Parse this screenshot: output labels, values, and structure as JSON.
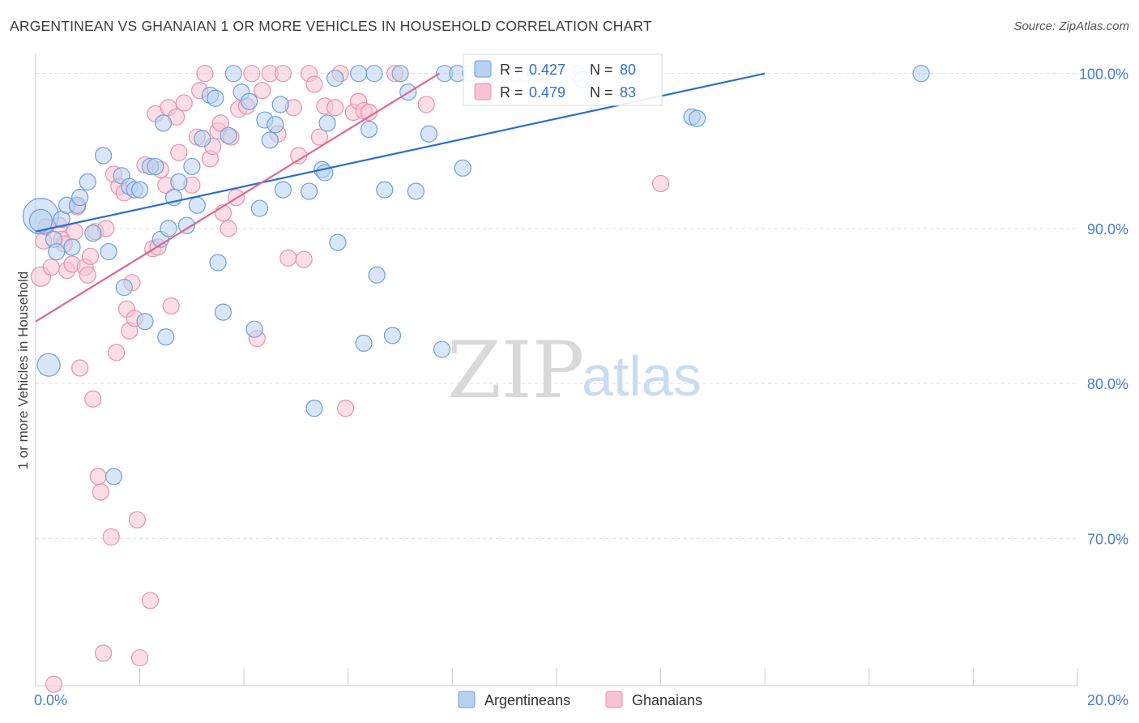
{
  "title": "ARGENTINEAN VS GHANAIAN 1 OR MORE VEHICLES IN HOUSEHOLD CORRELATION CHART",
  "source": "Source: ZipAtlas.com",
  "watermark": {
    "zip": "ZIP",
    "atlas": "atlas"
  },
  "colors": {
    "blue_fill": "#b8d1f0",
    "blue_stroke": "#6f9fd8",
    "blue_line": "#2a6fce",
    "pink_fill": "#f7c2d2",
    "pink_stroke": "#e891ad",
    "pink_line": "#e0658f",
    "tick": "#4a7cc7",
    "grid": "#dddddd"
  },
  "stats_box": {
    "rows": [
      {
        "r_label": "R = ",
        "r_value": "0.427",
        "n_label": "N = ",
        "n_value": "80"
      },
      {
        "r_label": "R = ",
        "r_value": "0.479",
        "n_label": "N = ",
        "n_value": "83"
      }
    ]
  },
  "chart_data": {
    "type": "scatter",
    "title": "ARGENTINEAN VS GHANAIAN 1 OR MORE VEHICLES IN HOUSEHOLD CORRELATION CHART",
    "xlabel": "",
    "ylabel": "1 or more Vehicles in Household",
    "xlim": [
      0,
      20
    ],
    "ylim": [
      60.5,
      101.5
    ],
    "x_ticks": [
      {
        "value": 0,
        "label": "0.0%"
      },
      {
        "value": 20,
        "label": "20.0%"
      }
    ],
    "y_ticks": [
      {
        "value": 100,
        "label": "100.0%"
      },
      {
        "value": 90,
        "label": "90.0%"
      },
      {
        "value": 80,
        "label": "80.0%"
      },
      {
        "value": 70,
        "label": "70.0%"
      }
    ],
    "legend": [
      "Argentineans",
      "Ghanaians"
    ],
    "legend_position": "bottom",
    "series": [
      {
        "name": "Argentineans",
        "r": 0.427,
        "n": 80,
        "trend": [
          [
            0,
            89.8
          ],
          [
            14,
            100
          ]
        ],
        "points": [
          [
            0.1,
            90.8,
            22
          ],
          [
            0.1,
            90.5,
            14
          ],
          [
            0.25,
            81.2,
            14
          ],
          [
            0.35,
            89.3,
            10
          ],
          [
            0.4,
            88.5,
            10
          ],
          [
            0.5,
            90.6,
            10
          ],
          [
            0.6,
            91.5,
            10
          ],
          [
            0.7,
            88.8,
            10
          ],
          [
            0.8,
            91.5,
            10
          ],
          [
            0.85,
            92.0,
            10
          ],
          [
            1.0,
            93.0,
            10
          ],
          [
            1.1,
            89.7,
            10
          ],
          [
            1.3,
            94.7,
            10
          ],
          [
            1.4,
            88.5,
            10
          ],
          [
            1.5,
            74.0,
            10
          ],
          [
            1.65,
            93.4,
            10
          ],
          [
            1.7,
            86.2,
            10
          ],
          [
            1.8,
            92.7,
            10
          ],
          [
            1.9,
            92.5,
            10
          ],
          [
            2.0,
            92.5,
            10
          ],
          [
            2.1,
            84.0,
            10
          ],
          [
            2.2,
            94.0,
            10
          ],
          [
            2.3,
            94.0,
            10
          ],
          [
            2.4,
            89.3,
            10
          ],
          [
            2.45,
            96.8,
            10
          ],
          [
            2.5,
            83.0,
            10
          ],
          [
            2.55,
            90.0,
            10
          ],
          [
            2.65,
            92.0,
            10
          ],
          [
            2.75,
            93.0,
            10
          ],
          [
            2.9,
            90.2,
            10
          ],
          [
            3.0,
            94.0,
            10
          ],
          [
            3.1,
            91.5,
            10
          ],
          [
            3.2,
            95.8,
            10
          ],
          [
            3.35,
            98.6,
            10
          ],
          [
            3.45,
            98.4,
            10
          ],
          [
            3.5,
            87.8,
            10
          ],
          [
            3.6,
            84.6,
            10
          ],
          [
            3.7,
            96.0,
            10
          ],
          [
            3.8,
            100.0,
            10
          ],
          [
            3.95,
            98.8,
            10
          ],
          [
            4.1,
            98.2,
            10
          ],
          [
            4.2,
            83.5,
            10
          ],
          [
            4.3,
            91.3,
            10
          ],
          [
            4.4,
            97.0,
            10
          ],
          [
            4.5,
            95.7,
            10
          ],
          [
            4.6,
            96.7,
            10
          ],
          [
            4.7,
            98.0,
            10
          ],
          [
            4.75,
            92.5,
            10
          ],
          [
            5.25,
            92.4,
            10
          ],
          [
            5.35,
            78.4,
            10
          ],
          [
            5.5,
            93.8,
            10
          ],
          [
            5.55,
            93.6,
            10
          ],
          [
            5.6,
            96.8,
            10
          ],
          [
            5.75,
            99.7,
            10
          ],
          [
            5.8,
            89.1,
            10
          ],
          [
            6.2,
            100.0,
            10
          ],
          [
            6.3,
            82.6,
            10
          ],
          [
            6.4,
            96.4,
            10
          ],
          [
            6.5,
            100.0,
            10
          ],
          [
            6.55,
            87.0,
            10
          ],
          [
            6.7,
            92.5,
            10
          ],
          [
            6.85,
            83.1,
            10
          ],
          [
            7.0,
            100.0,
            10
          ],
          [
            7.15,
            98.8,
            10
          ],
          [
            7.3,
            92.4,
            10
          ],
          [
            7.55,
            96.1,
            10
          ],
          [
            7.8,
            82.2,
            10
          ],
          [
            7.85,
            100.0,
            10
          ],
          [
            8.1,
            100.0,
            10
          ],
          [
            8.2,
            93.9,
            10
          ],
          [
            8.35,
            100.0,
            10
          ],
          [
            8.7,
            99.9,
            10
          ],
          [
            9.2,
            100.0,
            10
          ],
          [
            9.4,
            100.0,
            10
          ],
          [
            9.6,
            100.0,
            10
          ],
          [
            10.4,
            100.0,
            10
          ],
          [
            10.5,
            99.6,
            10
          ],
          [
            12.6,
            97.2,
            10
          ],
          [
            12.7,
            97.1,
            10
          ],
          [
            17.0,
            100.0,
            10
          ]
        ]
      },
      {
        "name": "Ghanaians",
        "r": 0.479,
        "n": 83,
        "trend": [
          [
            0,
            84.0
          ],
          [
            7.75,
            100
          ]
        ],
        "points": [
          [
            0.1,
            86.9,
            12
          ],
          [
            0.15,
            89.2,
            10
          ],
          [
            0.2,
            90.1,
            10
          ],
          [
            0.3,
            87.5,
            10
          ],
          [
            0.35,
            60.6,
            10
          ],
          [
            0.45,
            90.2,
            10
          ],
          [
            0.5,
            89.3,
            10
          ],
          [
            0.55,
            89.0,
            10
          ],
          [
            0.6,
            87.3,
            10
          ],
          [
            0.7,
            87.7,
            10
          ],
          [
            0.75,
            89.8,
            10
          ],
          [
            0.8,
            91.4,
            10
          ],
          [
            0.85,
            81.0,
            10
          ],
          [
            0.95,
            87.5,
            10
          ],
          [
            1.0,
            87.0,
            10
          ],
          [
            1.05,
            88.2,
            10
          ],
          [
            1.1,
            79.0,
            10
          ],
          [
            1.15,
            89.8,
            10
          ],
          [
            1.2,
            74.0,
            10
          ],
          [
            1.25,
            73.0,
            10
          ],
          [
            1.3,
            62.6,
            10
          ],
          [
            1.35,
            90.0,
            10
          ],
          [
            1.45,
            70.1,
            10
          ],
          [
            1.5,
            93.5,
            10
          ],
          [
            1.55,
            82.0,
            10
          ],
          [
            1.6,
            92.7,
            10
          ],
          [
            1.7,
            92.3,
            10
          ],
          [
            1.75,
            84.8,
            10
          ],
          [
            1.8,
            83.4,
            10
          ],
          [
            1.85,
            86.5,
            10
          ],
          [
            1.9,
            84.2,
            10
          ],
          [
            1.95,
            71.2,
            10
          ],
          [
            2.0,
            62.3,
            10
          ],
          [
            2.1,
            94.1,
            10
          ],
          [
            2.2,
            66.0,
            10
          ],
          [
            2.25,
            88.7,
            10
          ],
          [
            2.3,
            97.4,
            10
          ],
          [
            2.35,
            88.8,
            10
          ],
          [
            2.4,
            93.8,
            10
          ],
          [
            2.5,
            92.8,
            10
          ],
          [
            2.55,
            97.8,
            10
          ],
          [
            2.6,
            85.0,
            10
          ],
          [
            2.7,
            97.2,
            10
          ],
          [
            2.75,
            94.9,
            10
          ],
          [
            2.85,
            98.1,
            10
          ],
          [
            3.0,
            92.8,
            10
          ],
          [
            3.1,
            95.9,
            10
          ],
          [
            3.15,
            98.9,
            10
          ],
          [
            3.25,
            100.0,
            10
          ],
          [
            3.35,
            94.5,
            10
          ],
          [
            3.4,
            95.3,
            10
          ],
          [
            3.5,
            96.3,
            10
          ],
          [
            3.55,
            96.8,
            10
          ],
          [
            3.6,
            91.0,
            10
          ],
          [
            3.7,
            90.0,
            10
          ],
          [
            3.75,
            95.9,
            10
          ],
          [
            3.85,
            92.0,
            10
          ],
          [
            3.9,
            97.7,
            10
          ],
          [
            4.05,
            97.9,
            10
          ],
          [
            4.15,
            100.0,
            10
          ],
          [
            4.25,
            82.9,
            10
          ],
          [
            4.35,
            98.9,
            10
          ],
          [
            4.5,
            100.0,
            10
          ],
          [
            4.65,
            96.1,
            10
          ],
          [
            4.75,
            100.0,
            10
          ],
          [
            4.85,
            88.1,
            10
          ],
          [
            4.95,
            97.8,
            10
          ],
          [
            5.05,
            94.7,
            10
          ],
          [
            5.15,
            88.0,
            10
          ],
          [
            5.25,
            100.0,
            10
          ],
          [
            5.35,
            99.3,
            10
          ],
          [
            5.45,
            95.9,
            10
          ],
          [
            5.55,
            97.9,
            10
          ],
          [
            5.75,
            97.8,
            10
          ],
          [
            5.85,
            100.0,
            10
          ],
          [
            5.95,
            78.4,
            10
          ],
          [
            6.1,
            97.5,
            10
          ],
          [
            6.2,
            98.2,
            10
          ],
          [
            6.3,
            97.6,
            10
          ],
          [
            6.4,
            97.5,
            10
          ],
          [
            6.9,
            100.0,
            10
          ],
          [
            7.5,
            98.0,
            10
          ],
          [
            12.0,
            92.9,
            10
          ]
        ]
      }
    ]
  }
}
